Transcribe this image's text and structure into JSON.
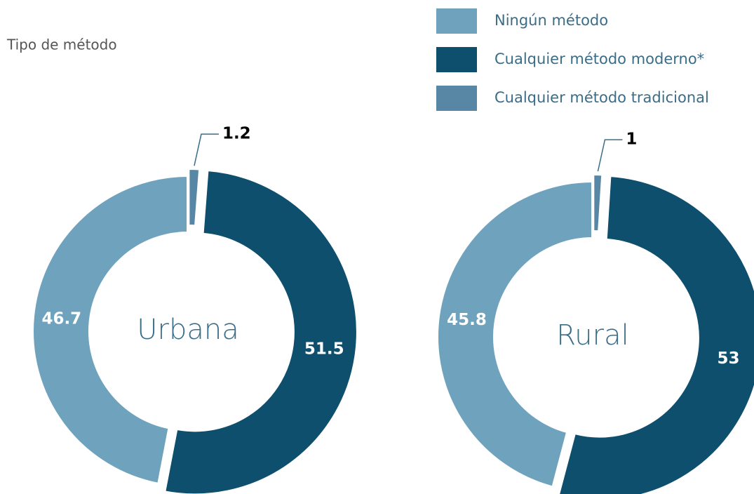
{
  "legend": {
    "title": "Tipo de método",
    "categories": [
      "Ningún método",
      "Cualquier método moderno*",
      "Cualquier método tradicional"
    ],
    "colors": [
      "#6fa3bd",
      "#0e4f6e",
      "#5787a5"
    ]
  },
  "chart_data": [
    {
      "type": "pie",
      "title": "Urbana",
      "values": [
        46.7,
        51.5,
        1.2
      ]
    },
    {
      "type": "pie",
      "title": "Rural",
      "values": [
        45.8,
        53,
        1
      ]
    }
  ]
}
